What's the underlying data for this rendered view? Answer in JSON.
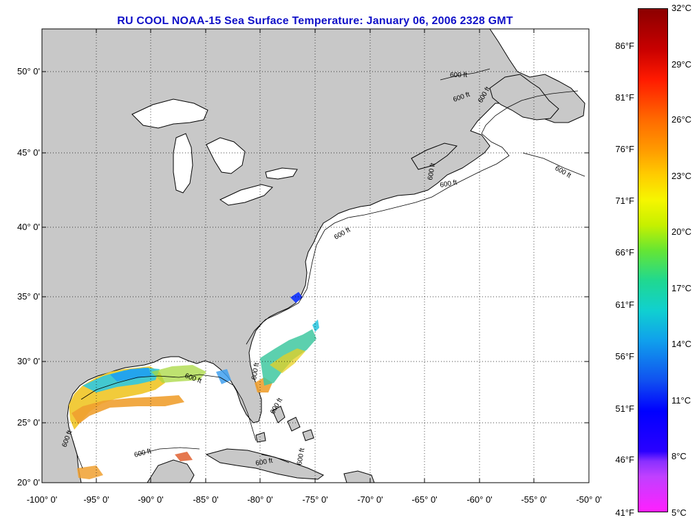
{
  "title": "RU COOL  NOAA-15  Sea Surface Temperature:  January 06, 2006 2328 GMT",
  "map": {
    "lat_labels": [
      "50° 0'",
      "45° 0'",
      "40° 0'",
      "35° 0'",
      "30° 0'",
      "25° 0'",
      "20° 0'"
    ],
    "lon_labels": [
      "-100° 0'",
      "-95° 0'",
      "-90° 0'",
      "-85° 0'",
      "-80° 0'",
      "-75° 0'",
      "-70° 0'",
      "-65° 0'",
      "-60° 0'",
      "-55° 0'",
      "-50° 0'"
    ],
    "land_color": "#c8c8c8",
    "ocean_color": "#ffffff",
    "isobath_labels": [
      "600 ft",
      "600 ft",
      "600 ft",
      "600 ft",
      "600 ft",
      "600 ft",
      "600 ft",
      "600 ft",
      "600 ft",
      "600 ft",
      "600 ft",
      "600 ft",
      "600 ft",
      "600 ft"
    ]
  },
  "colorbar": {
    "celsius": [
      "32°C",
      "29°C",
      "26°C",
      "23°C",
      "20°C",
      "17°C",
      "14°C",
      "11°C",
      "8°C",
      "5°C"
    ],
    "fahrenheit": [
      "86°F",
      "81°F",
      "76°F",
      "71°F",
      "66°F",
      "61°F",
      "56°F",
      "51°F",
      "46°F",
      "41°F"
    ]
  }
}
